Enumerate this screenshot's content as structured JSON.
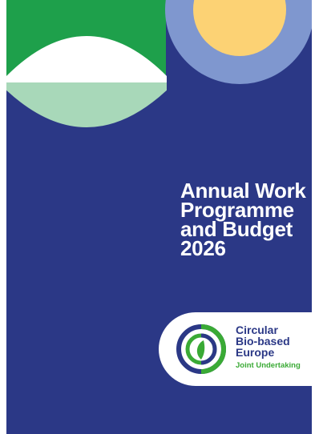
{
  "cover": {
    "background_color": "#2b3886",
    "title_lines": [
      "Annual Work",
      "Programme",
      "and Budget",
      "2026"
    ]
  },
  "decoration": {
    "green_block_color": "#1ea04b",
    "light_green_color": "#a8d8b9",
    "sun_color": "#fcd274",
    "sun_ring_color": "#7f97cf"
  },
  "logo": {
    "lines": [
      "Circular",
      "Bio-based",
      "Europe"
    ],
    "tagline": "Joint Undertaking",
    "primary_color": "#2b3886",
    "accent_color": "#3aaa35"
  }
}
